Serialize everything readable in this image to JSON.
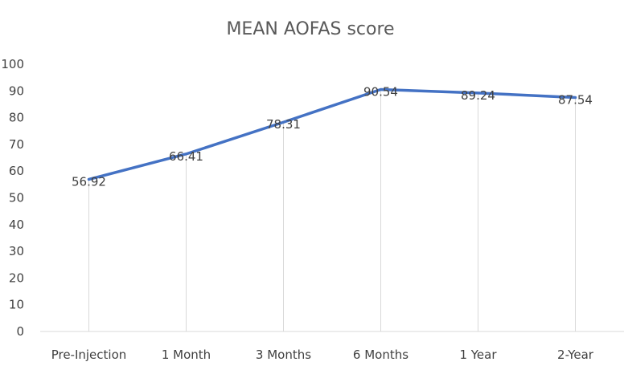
{
  "chart_data": {
    "type": "line",
    "title": "MEAN AOFAS score",
    "categories": [
      "Pre-Injection",
      "1 Month",
      "3 Months",
      "6 Months",
      "1 Year",
      "2-Year"
    ],
    "series": [
      {
        "values": [
          56.92,
          66.41,
          78.31,
          90.54,
          89.24,
          87.54
        ]
      }
    ],
    "data_labels": [
      "56.92",
      "66.41",
      "78.31",
      "90.54",
      "89.24",
      "87.54"
    ],
    "y_ticks": [
      "0",
      "10",
      "20",
      "30",
      "40",
      "50",
      "60",
      "70",
      "80",
      "90",
      "100"
    ],
    "ylim": [
      0,
      100
    ],
    "xlabel": "",
    "ylabel": "",
    "grid": "vertical drop lines at categories",
    "legend": "none",
    "colors": {
      "series": "#4472c4",
      "grid": "#d9d9d9",
      "text": "#404040",
      "title": "#595959"
    }
  }
}
